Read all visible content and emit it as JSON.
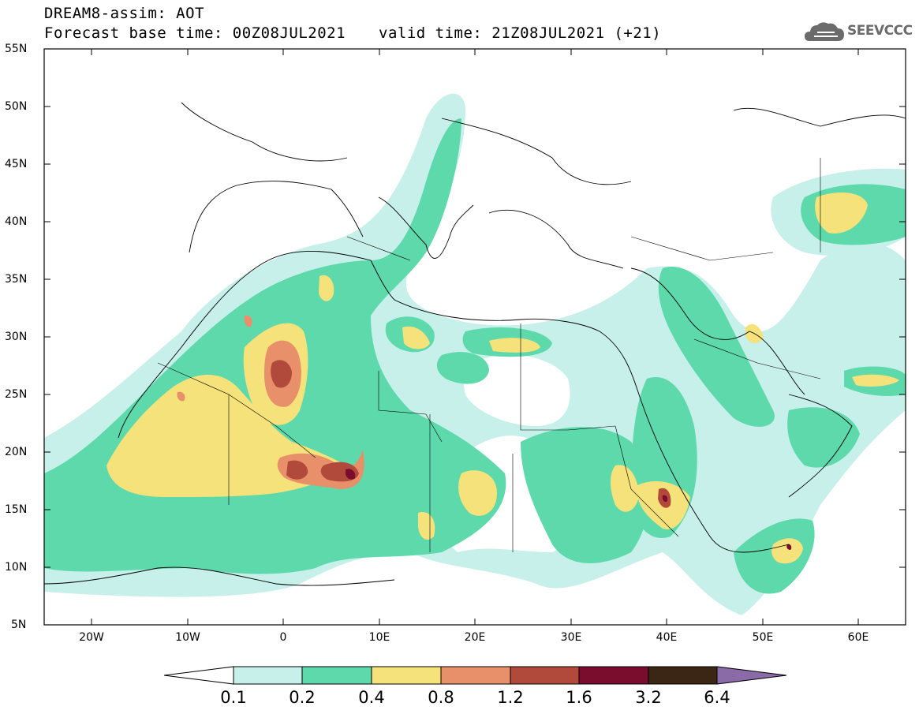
{
  "title": {
    "line1": "DREAM8-assim: AOT",
    "line2": "Forecast base time: 00Z08JUL2021",
    "valid": "valid time: 21Z08JUL2021 (+21)"
  },
  "logo": {
    "text": "SEEVCCC",
    "icon": "cloud-icon"
  },
  "axes": {
    "lat_labels": [
      "55N",
      "50N",
      "45N",
      "40N",
      "35N",
      "30N",
      "25N",
      "20N",
      "15N",
      "10N",
      "5N"
    ],
    "lon_labels": [
      "20W",
      "10W",
      "0",
      "10E",
      "20E",
      "30E",
      "40E",
      "50E",
      "60E"
    ]
  },
  "colorbar": {
    "labels": [
      "0.1",
      "0.2",
      "0.4",
      "0.8",
      "1.2",
      "1.6",
      "3.2",
      "6.4"
    ],
    "colors": [
      "#ffffff",
      "#c6f0e9",
      "#5ed9ab",
      "#f5e27a",
      "#e8906a",
      "#b24a3c",
      "#7a0c2e",
      "#3b2616",
      "#8b6aa8"
    ]
  },
  "field_colors": {
    "c1": "#c6f0e9",
    "c2": "#5ed9ab",
    "c3": "#f5e27a",
    "c4": "#e8906a",
    "c5": "#b24a3c",
    "c6": "#7a0c2e"
  }
}
